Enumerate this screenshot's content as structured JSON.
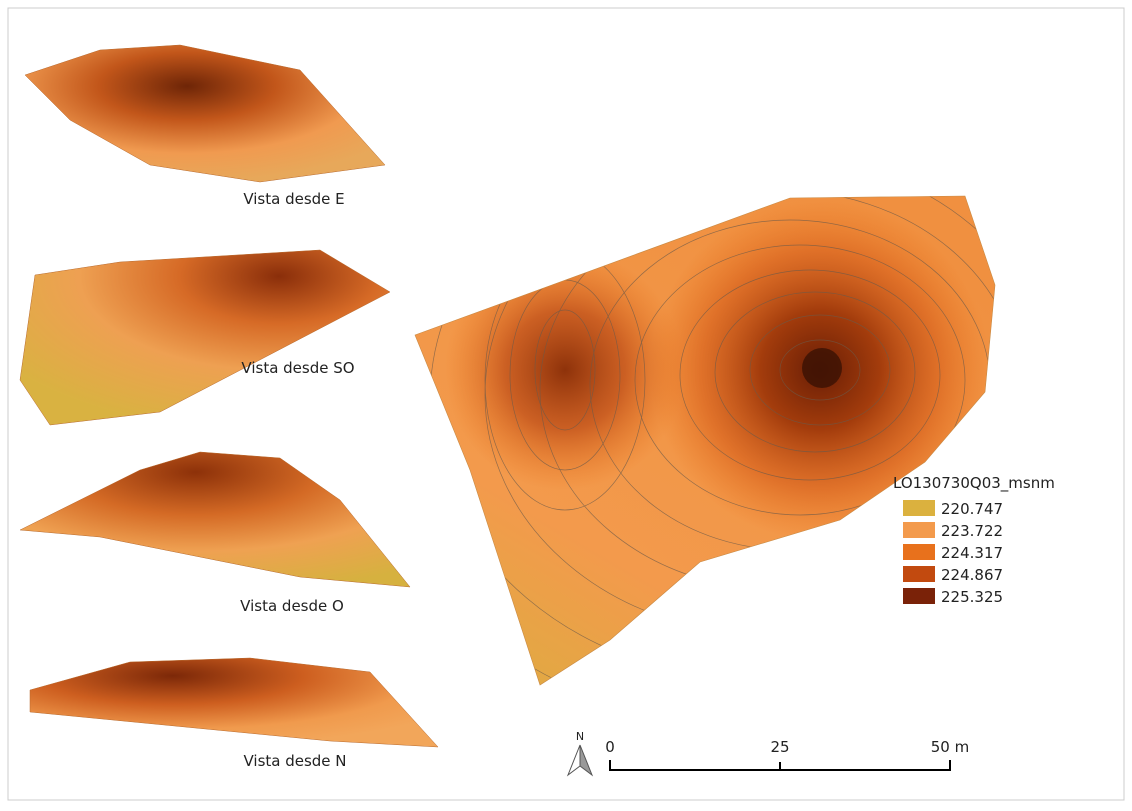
{
  "views": [
    {
      "label": "Vista desde E"
    },
    {
      "label": "Vista desde SO"
    },
    {
      "label": "Vista desde O"
    },
    {
      "label": "Vista desde N"
    }
  ],
  "legend": {
    "title": "LO130730Q03_msnm",
    "items": [
      {
        "label": "220.747",
        "color": "#dbb13e"
      },
      {
        "label": "223.722",
        "color": "#f39a4c"
      },
      {
        "label": "224.317",
        "color": "#e8711c"
      },
      {
        "label": "224.867",
        "color": "#c24a0f"
      },
      {
        "label": "225.325",
        "color": "#7a2208"
      }
    ]
  },
  "north": "N",
  "scale_bar": {
    "labels": [
      "0",
      "25",
      "50 m"
    ]
  }
}
